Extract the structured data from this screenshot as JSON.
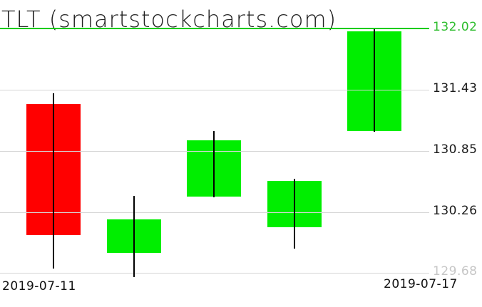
{
  "header": {
    "title": "TLT (smartstockcharts.com)"
  },
  "colors": {
    "background": "#ffffff",
    "candle_up": "#00ee00",
    "candle_down": "#ff0000",
    "wick": "#000000",
    "grid": "#d6d6d6",
    "current_price_line": "#00cc00",
    "current_price_text": "#2ebd2e",
    "tick_text": "#1a1a1a",
    "faded_tick_text": "#c6c6c6"
  },
  "chart_data": {
    "type": "candlestick",
    "symbol": "TLT",
    "title": "TLT (smartstockcharts.com)",
    "source_label": "smartstockcharts.com",
    "grid": true,
    "legend": false,
    "ylim": [
      129.55,
      132.12
    ],
    "y_axis_ticks": [
      {
        "label": "132.02",
        "value": 132.02,
        "style": "current"
      },
      {
        "label": "131.43",
        "value": 131.43,
        "style": "normal"
      },
      {
        "label": "130.85",
        "value": 130.85,
        "style": "normal"
      },
      {
        "label": "130.26",
        "value": 130.26,
        "style": "normal"
      },
      {
        "label": "129.68",
        "value": 129.68,
        "style": "faded"
      }
    ],
    "x_axis_labels": [
      "2019-07-11",
      "2019-07-17"
    ],
    "candles": [
      {
        "open": 131.3,
        "high": 131.4,
        "low": 129.72,
        "close": 130.04,
        "direction": "down"
      },
      {
        "open": 129.87,
        "high": 130.42,
        "low": 129.64,
        "close": 130.19,
        "direction": "up"
      },
      {
        "open": 130.41,
        "high": 131.04,
        "low": 130.4,
        "close": 130.95,
        "direction": "up"
      },
      {
        "open": 130.12,
        "high": 130.58,
        "low": 129.91,
        "close": 130.56,
        "direction": "up"
      },
      {
        "open": 131.04,
        "high": 132.02,
        "low": 131.03,
        "close": 131.99,
        "direction": "up"
      }
    ]
  }
}
